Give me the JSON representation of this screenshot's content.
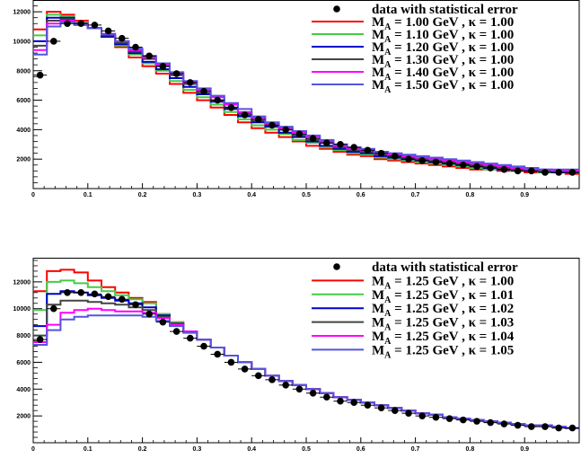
{
  "chart_data": [
    {
      "type": "line",
      "xlim": [
        0,
        1
      ],
      "ylim": [
        0,
        12800
      ],
      "x_ticks": [
        "0",
        "0.1",
        "0.2",
        "0.3",
        "0.4",
        "0.5",
        "0.6",
        "0.7",
        "0.8",
        "0.9"
      ],
      "y_ticks": [
        "2000",
        "4000",
        "6000",
        "8000",
        "10000",
        "12000"
      ],
      "x_tick_values": [
        0,
        0.1,
        0.2,
        0.3,
        0.4,
        0.5,
        0.6,
        0.7,
        0.8,
        0.9
      ],
      "y_tick_values": [
        2000,
        4000,
        6000,
        8000,
        10000,
        12000
      ],
      "legend_position": "top-right",
      "grid": false,
      "data_series": {
        "name": "data with statistical error",
        "x": [
          0.0125,
          0.0375,
          0.0625,
          0.0875,
          0.1125,
          0.1375,
          0.1625,
          0.1875,
          0.2125,
          0.2375,
          0.2625,
          0.2875,
          0.3125,
          0.3375,
          0.3625,
          0.3875,
          0.4125,
          0.4375,
          0.4625,
          0.4875,
          0.5125,
          0.5375,
          0.5625,
          0.5875,
          0.6125,
          0.6375,
          0.6625,
          0.6875,
          0.7125,
          0.7375,
          0.7625,
          0.7875,
          0.8125,
          0.8375,
          0.8625,
          0.8875,
          0.9125,
          0.9375,
          0.9625,
          0.9875
        ],
        "y": [
          7700,
          10000,
          11200,
          11200,
          11100,
          10700,
          10200,
          9600,
          9000,
          8300,
          7800,
          7200,
          6600,
          6000,
          5500,
          5000,
          4700,
          4300,
          4000,
          3700,
          3400,
          3100,
          3000,
          2800,
          2600,
          2400,
          2200,
          2000,
          1900,
          1800,
          1700,
          1600,
          1500,
          1400,
          1300,
          1200,
          1200,
          1100,
          1100,
          1100
        ]
      },
      "series": [
        {
          "name": "M_A = 1.00 GeV , κ = 1.00",
          "label_parts": [
            "M",
            "A",
            " = 1.00 GeV , κ = 1.00"
          ],
          "color": "#ff0000",
          "y": [
            10800,
            12000,
            11800,
            11400,
            10900,
            10300,
            9600,
            8900,
            8300,
            7800,
            7100,
            6500,
            6000,
            5500,
            5000,
            4500,
            4100,
            3800,
            3500,
            3200,
            2900,
            2700,
            2500,
            2300,
            2200,
            2000,
            1900,
            1800,
            1700,
            1600,
            1500,
            1400,
            1300,
            1300,
            1200,
            1200,
            1100,
            1100,
            1100,
            1000
          ]
        },
        {
          "name": "M_A = 1.10 GeV , κ = 1.00",
          "label_parts": [
            "M",
            "A",
            " = 1.10 GeV , κ = 1.00"
          ],
          "color": "#44cc44",
          "y": [
            10400,
            11800,
            11700,
            11300,
            10900,
            10300,
            9700,
            9100,
            8500,
            8000,
            7300,
            6700,
            6200,
            5700,
            5200,
            4700,
            4300,
            4000,
            3700,
            3300,
            3100,
            2800,
            2600,
            2400,
            2300,
            2100,
            2000,
            1900,
            1800,
            1700,
            1600,
            1500,
            1400,
            1300,
            1300,
            1200,
            1200,
            1100,
            1100,
            1100
          ]
        },
        {
          "name": "M_A = 1.20 GeV , κ = 1.00",
          "label_parts": [
            "M",
            "A",
            " = 1.20 GeV , κ = 1.00"
          ],
          "color": "#0000cc",
          "y": [
            10000,
            11600,
            11600,
            11200,
            10900,
            10300,
            9800,
            9200,
            8600,
            8100,
            7500,
            6900,
            6400,
            5900,
            5400,
            4900,
            4500,
            4200,
            3800,
            3500,
            3200,
            2900,
            2700,
            2500,
            2400,
            2200,
            2100,
            2000,
            1900,
            1800,
            1700,
            1600,
            1500,
            1400,
            1300,
            1300,
            1200,
            1200,
            1100,
            1100
          ]
        },
        {
          "name": "M_A = 1.30 GeV , κ = 1.00",
          "label_parts": [
            "M",
            "A",
            " = 1.30 GeV , κ = 1.00"
          ],
          "color": "#444444",
          "y": [
            9700,
            11400,
            11500,
            11200,
            10900,
            10400,
            9900,
            9300,
            8800,
            8300,
            7700,
            7100,
            6500,
            6000,
            5500,
            5100,
            4600,
            4300,
            4000,
            3600,
            3300,
            3100,
            2800,
            2600,
            2500,
            2300,
            2200,
            2100,
            2000,
            1900,
            1800,
            1700,
            1600,
            1500,
            1400,
            1300,
            1300,
            1200,
            1200,
            1100
          ]
        },
        {
          "name": "M_A = 1.40 GeV , κ = 1.00",
          "label_parts": [
            "M",
            "A",
            " = 1.40 GeV , κ = 1.00"
          ],
          "color": "#ff00ff",
          "y": [
            9400,
            11200,
            11400,
            11200,
            10900,
            10500,
            10000,
            9400,
            8900,
            8400,
            7800,
            7200,
            6700,
            6200,
            5700,
            5200,
            4800,
            4400,
            4100,
            3800,
            3500,
            3200,
            2900,
            2700,
            2600,
            2400,
            2300,
            2200,
            2100,
            2000,
            1900,
            1800,
            1700,
            1600,
            1500,
            1400,
            1300,
            1300,
            1200,
            1200
          ]
        },
        {
          "name": "M_A = 1.50 GeV , κ = 1.00",
          "label_parts": [
            "M",
            "A",
            " = 1.50 GeV , κ = 1.00"
          ],
          "color": "#5555dd",
          "y": [
            9100,
            11000,
            11300,
            11100,
            10900,
            10500,
            10000,
            9500,
            9000,
            8500,
            7900,
            7300,
            6800,
            6300,
            5800,
            5400,
            4900,
            4500,
            4200,
            3900,
            3600,
            3300,
            3000,
            2800,
            2700,
            2500,
            2400,
            2300,
            2200,
            2100,
            2000,
            1900,
            1800,
            1700,
            1600,
            1500,
            1400,
            1300,
            1300,
            1300
          ]
        }
      ],
      "legend_data_label": "data with statistical error"
    },
    {
      "type": "line",
      "xlim": [
        0,
        1
      ],
      "ylim": [
        0,
        13800
      ],
      "x_ticks": [
        "0",
        "0.1",
        "0.2",
        "0.3",
        "0.4",
        "0.5",
        "0.6",
        "0.7",
        "0.8",
        "0.9"
      ],
      "y_ticks": [
        "2000",
        "4000",
        "6000",
        "8000",
        "10000",
        "12000"
      ],
      "x_tick_values": [
        0,
        0.1,
        0.2,
        0.3,
        0.4,
        0.5,
        0.6,
        0.7,
        0.8,
        0.9
      ],
      "y_tick_values": [
        2000,
        4000,
        6000,
        8000,
        10000,
        12000
      ],
      "legend_position": "top-right",
      "grid": false,
      "data_series": {
        "name": "data with statistical error",
        "x": [
          0.0125,
          0.0375,
          0.0625,
          0.0875,
          0.1125,
          0.1375,
          0.1625,
          0.1875,
          0.2125,
          0.2375,
          0.2625,
          0.2875,
          0.3125,
          0.3375,
          0.3625,
          0.3875,
          0.4125,
          0.4375,
          0.4625,
          0.4875,
          0.5125,
          0.5375,
          0.5625,
          0.5875,
          0.6125,
          0.6375,
          0.6625,
          0.6875,
          0.7125,
          0.7375,
          0.7625,
          0.7875,
          0.8125,
          0.8375,
          0.8625,
          0.8875,
          0.9125,
          0.9375,
          0.9625,
          0.9875
        ],
        "y": [
          7700,
          10000,
          11200,
          11200,
          11100,
          10900,
          10700,
          10300,
          9600,
          9000,
          8300,
          7800,
          7200,
          6600,
          6000,
          5500,
          5000,
          4700,
          4300,
          4000,
          3700,
          3400,
          3100,
          3000,
          2800,
          2600,
          2400,
          2200,
          2000,
          1900,
          1800,
          1700,
          1600,
          1500,
          1400,
          1300,
          1200,
          1200,
          1100,
          1100
        ]
      },
      "series": [
        {
          "name": "M_A = 1.25 GeV , κ = 1.00",
          "label_parts": [
            "M",
            "A",
            " = 1.25 GeV , κ = 1.00"
          ],
          "color": "#ff0000",
          "y": [
            11300,
            12800,
            12900,
            12700,
            12100,
            11600,
            11200,
            10800,
            10500,
            9600,
            9000,
            8300,
            7700,
            7100,
            6500,
            6000,
            5500,
            5000,
            4600,
            4300,
            4000,
            3700,
            3400,
            3200,
            3000,
            2800,
            2600,
            2400,
            2200,
            2100,
            1900,
            1800,
            1700,
            1600,
            1500,
            1400,
            1300,
            1300,
            1200,
            1100
          ]
        },
        {
          "name": "M_A = 1.25 GeV , κ = 1.01",
          "label_parts": [
            "M",
            "A",
            " = 1.25 GeV , κ = 1.01"
          ],
          "color": "#44cc44",
          "y": [
            9900,
            12000,
            12100,
            11900,
            11600,
            11300,
            11000,
            10700,
            10400,
            9600,
            9000,
            8300,
            7700,
            7100,
            6500,
            6000,
            5500,
            5000,
            4600,
            4300,
            4000,
            3700,
            3400,
            3200,
            3000,
            2800,
            2600,
            2400,
            2200,
            2100,
            1900,
            1800,
            1700,
            1600,
            1500,
            1400,
            1300,
            1300,
            1200,
            1100
          ]
        },
        {
          "name": "M_A = 1.25 GeV , κ = 1.02",
          "label_parts": [
            "M",
            "A",
            " = 1.25 GeV , κ = 1.02"
          ],
          "color": "#0000cc",
          "y": [
            8700,
            11100,
            11300,
            11200,
            11000,
            10800,
            10600,
            10400,
            10100,
            9500,
            8900,
            8300,
            7700,
            7100,
            6500,
            6000,
            5500,
            5000,
            4600,
            4300,
            4000,
            3700,
            3400,
            3200,
            3000,
            2800,
            2600,
            2400,
            2200,
            2100,
            1900,
            1800,
            1700,
            1600,
            1500,
            1400,
            1300,
            1300,
            1200,
            1100
          ]
        },
        {
          "name": "M_A = 1.25 GeV , κ = 1.03",
          "label_parts": [
            "M",
            "A",
            " = 1.25 GeV , κ = 1.03"
          ],
          "color": "#444444",
          "y": [
            8000,
            10300,
            10600,
            10600,
            10500,
            10400,
            10300,
            10100,
            9900,
            9400,
            8900,
            8300,
            7700,
            7100,
            6500,
            6000,
            5500,
            5000,
            4600,
            4300,
            4000,
            3700,
            3400,
            3200,
            3000,
            2800,
            2600,
            2400,
            2200,
            2100,
            1900,
            1800,
            1700,
            1600,
            1500,
            1400,
            1300,
            1300,
            1200,
            1100
          ]
        },
        {
          "name": "M_A = 1.25 GeV , κ = 1.04",
          "label_parts": [
            "M",
            "A",
            " = 1.25 GeV , κ = 1.04"
          ],
          "color": "#ff00ff",
          "y": [
            7500,
            8800,
            9700,
            9900,
            10000,
            9900,
            9800,
            9800,
            9700,
            9300,
            8800,
            8300,
            7700,
            7100,
            6500,
            6000,
            5500,
            5000,
            4600,
            4300,
            4000,
            3700,
            3400,
            3200,
            3000,
            2800,
            2600,
            2400,
            2200,
            2100,
            1900,
            1800,
            1700,
            1600,
            1500,
            1400,
            1300,
            1300,
            1200,
            1100
          ]
        },
        {
          "name": "M_A = 1.25 GeV , κ = 1.05",
          "label_parts": [
            "M",
            "A",
            " = 1.25 GeV , κ = 1.05"
          ],
          "color": "#5555dd",
          "y": [
            7300,
            8400,
            9200,
            9400,
            9500,
            9500,
            9500,
            9500,
            9400,
            9100,
            8700,
            8200,
            7700,
            7100,
            6500,
            6000,
            5500,
            5000,
            4600,
            4300,
            4000,
            3700,
            3400,
            3200,
            3000,
            2800,
            2600,
            2400,
            2200,
            2100,
            1900,
            1800,
            1700,
            1600,
            1500,
            1400,
            1300,
            1300,
            1200,
            1100
          ]
        }
      ],
      "legend_data_label": "data with statistical error"
    }
  ]
}
